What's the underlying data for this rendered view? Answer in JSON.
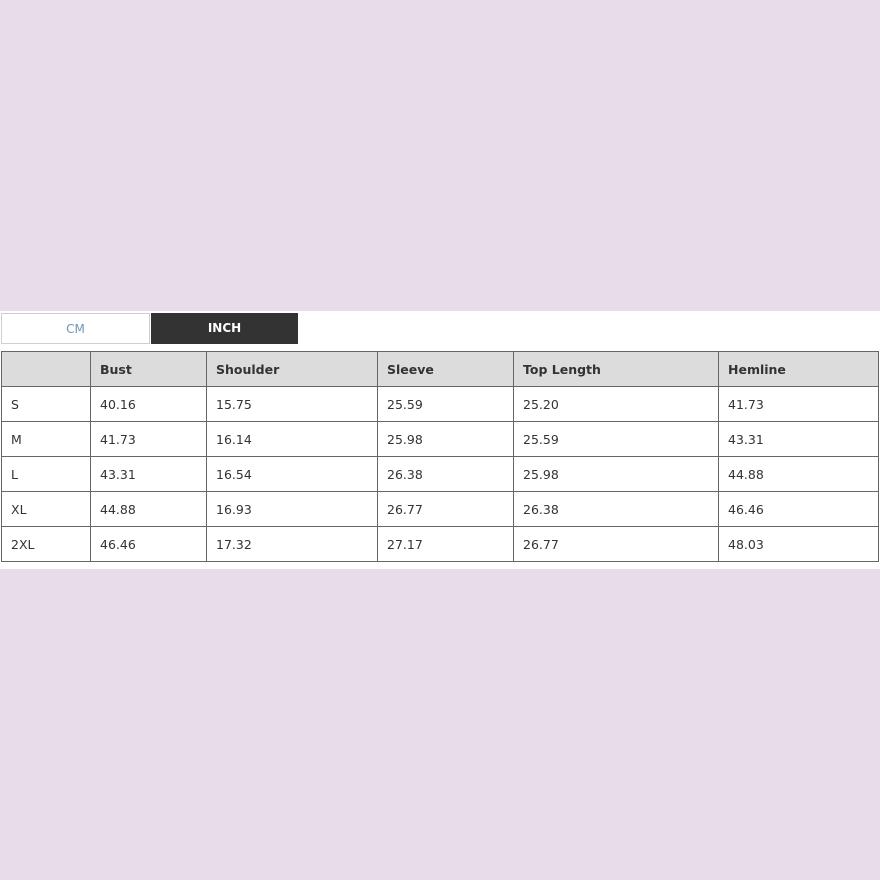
{
  "unit_tabs": [
    {
      "label": "CM",
      "active": false
    },
    {
      "label": "INCH",
      "active": true
    }
  ],
  "colors": {
    "background": "#e8dcea",
    "active_tab": "#333333",
    "inactive_tab_text": "#6f97b5",
    "header_bg": "#dcdcdc"
  },
  "table": {
    "headers": [
      "",
      "Bust",
      "Shoulder",
      "Sleeve",
      "Top Length",
      "Hemline"
    ],
    "rows": [
      [
        "S",
        "40.16",
        "15.75",
        "25.59",
        "25.20",
        "41.73"
      ],
      [
        "M",
        "41.73",
        "16.14",
        "25.98",
        "25.59",
        "43.31"
      ],
      [
        "L",
        "43.31",
        "16.54",
        "26.38",
        "25.98",
        "44.88"
      ],
      [
        "XL",
        "44.88",
        "16.93",
        "26.77",
        "26.38",
        "46.46"
      ],
      [
        "2XL",
        "46.46",
        "17.32",
        "27.17",
        "26.77",
        "48.03"
      ]
    ]
  }
}
